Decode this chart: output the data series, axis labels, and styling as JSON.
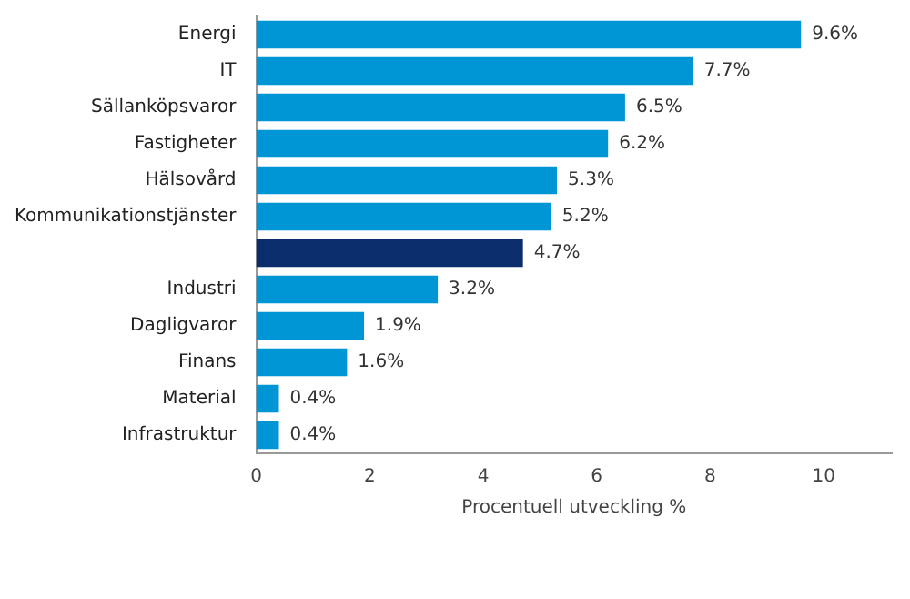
{
  "chart_data": {
    "type": "bar",
    "orientation": "horizontal",
    "xlabel": "Procentuell utveckling %",
    "categories": [
      "Energi",
      "IT",
      "Sällanköpsvaror",
      "Fastigheter",
      "Hälsovård",
      "Kommunikationstjänster",
      null,
      "Industri",
      "Dagligvaror",
      "Finans",
      "Material",
      "Infrastruktur"
    ],
    "values": [
      9.6,
      7.7,
      6.5,
      6.2,
      5.3,
      5.2,
      4.7,
      3.2,
      1.9,
      1.6,
      0.4,
      0.4
    ],
    "colors": [
      "#0096d6",
      "#0096d6",
      "#0096d6",
      "#0096d6",
      "#0096d6",
      "#0096d6",
      "#0b2d6b",
      "#0096d6",
      "#0096d6",
      "#0096d6",
      "#0096d6",
      "#0096d6"
    ],
    "value_labels": [
      "9.6%",
      "7.7%",
      "6.5%",
      "6.2%",
      "5.3%",
      "5.2%",
      "4.7%",
      "3.2%",
      "1.9%",
      "1.6%",
      "0.4%",
      "0.4%"
    ],
    "xlim": [
      0,
      11.2
    ],
    "xticks": [
      0,
      2,
      4,
      6,
      8,
      10
    ],
    "grid": false,
    "legend": false
  }
}
